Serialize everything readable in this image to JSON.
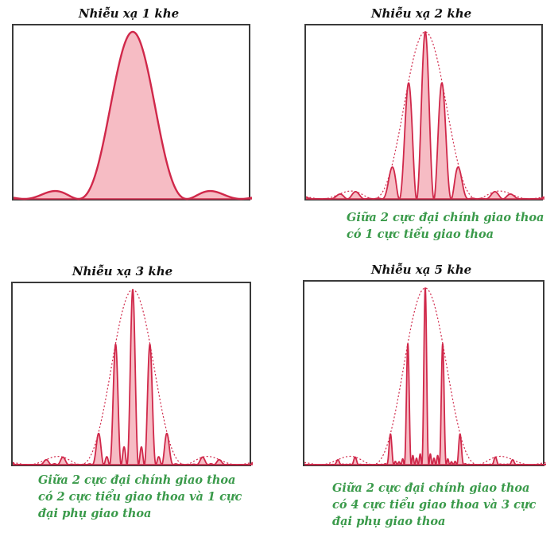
{
  "panels": [
    {
      "title": "Nhiễu xạ 1 khe",
      "slits": 1,
      "note": []
    },
    {
      "title": "Nhiễu xạ 2 khe",
      "slits": 2,
      "note": [
        "Giữa 2 cực đại chính giao thoa",
        "có 1 cực tiểu giao thoa"
      ]
    },
    {
      "title": "Nhiễu xạ 3 khe",
      "slits": 3,
      "note": [
        "Giữa 2 cực đại chính giao thoa",
        "có 2 cực tiểu giao thoa và 1 cực",
        "đại phụ giao thoa"
      ]
    },
    {
      "title": "Nhiễu xạ 5 khe",
      "slits": 5,
      "note": [
        "Giữa 2 cực đại chính giao thoa",
        "có 4 cực tiểu giao thoa và 3 cực",
        "đại phụ giao thoa"
      ]
    }
  ],
  "colors": {
    "curve": "#d0284a",
    "fill": "#f6bcc4",
    "envelope": "#d0284a",
    "frame": "#3a3a3a",
    "note": "#3a9a4a"
  }
}
